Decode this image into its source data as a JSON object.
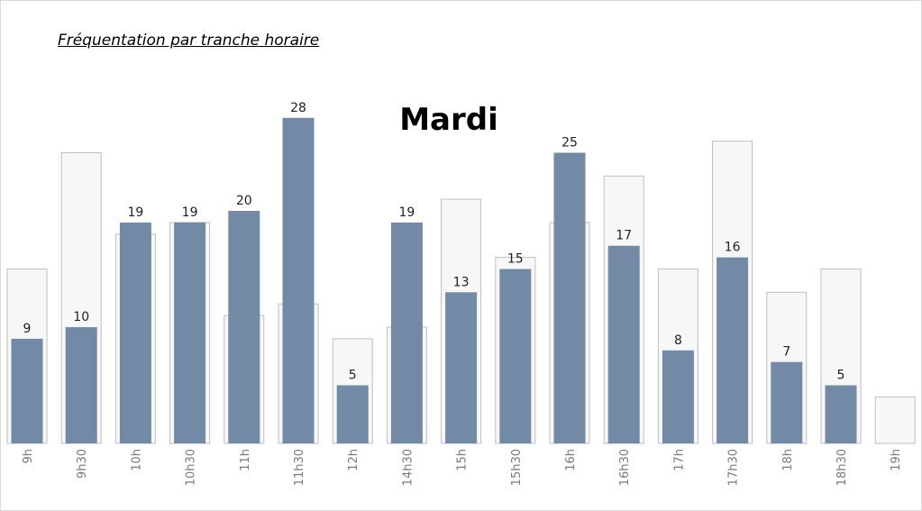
{
  "page": {
    "title": "Fréquentation par tranche horaire"
  },
  "colors": {
    "bar": "#728aa6",
    "reference_fill": "#f7f7f7",
    "reference_stroke": "#bfbfbf"
  },
  "chart_data": {
    "type": "bar",
    "title": "Mardi",
    "xlabel": "",
    "ylabel": "",
    "ylim": [
      0,
      29
    ],
    "grid": false,
    "legend": "none",
    "categories": [
      "9h",
      "9h30",
      "10h",
      "10h30",
      "11h",
      "11h30",
      "12h",
      "14h30",
      "15h",
      "15h30",
      "16h",
      "16h30",
      "17h",
      "17h30",
      "18h",
      "18h30",
      "19h"
    ],
    "series": [
      {
        "values": [
          9,
          10,
          19,
          19,
          20,
          28,
          5,
          19,
          13,
          15,
          25,
          17,
          8,
          16,
          7,
          5,
          null
        ],
        "labels": [
          "9",
          "10",
          "19",
          "19",
          "20",
          "28",
          "5",
          "19",
          "13",
          "15",
          "25",
          "17",
          "8",
          "16",
          "7",
          "5",
          ""
        ]
      },
      {
        "style": "reference",
        "values": [
          15,
          25,
          18,
          19,
          11,
          12,
          9,
          10,
          21,
          16,
          19,
          23,
          15,
          26,
          13,
          15,
          4
        ]
      }
    ]
  }
}
